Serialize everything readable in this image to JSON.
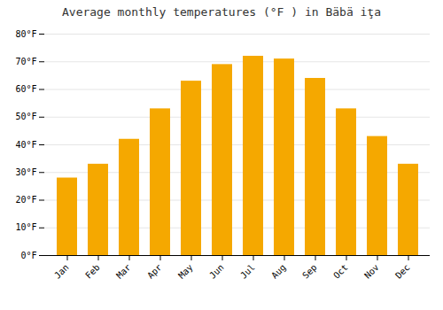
{
  "chart_data": {
    "type": "bar",
    "title": "Average monthly temperatures (°F ) in Bäbä iţa",
    "categories": [
      "Jan",
      "Feb",
      "Mar",
      "Apr",
      "May",
      "Jun",
      "Jul",
      "Aug",
      "Sep",
      "Oct",
      "Nov",
      "Dec"
    ],
    "values": [
      28,
      33,
      42,
      53,
      63,
      69,
      72,
      71,
      64,
      53,
      43,
      33
    ],
    "color": "#F5A800",
    "ylim": [
      0,
      80
    ],
    "yticks": [
      {
        "value": 0,
        "label": "0°F"
      },
      {
        "value": 10,
        "label": "10°F"
      },
      {
        "value": 20,
        "label": "20°F"
      },
      {
        "value": 30,
        "label": "30°F"
      },
      {
        "value": 40,
        "label": "40°F"
      },
      {
        "value": 50,
        "label": "50°F"
      },
      {
        "value": 60,
        "label": "60°F"
      },
      {
        "value": 70,
        "label": "70°F"
      },
      {
        "value": 80,
        "label": "80°F"
      }
    ],
    "grid": true
  }
}
